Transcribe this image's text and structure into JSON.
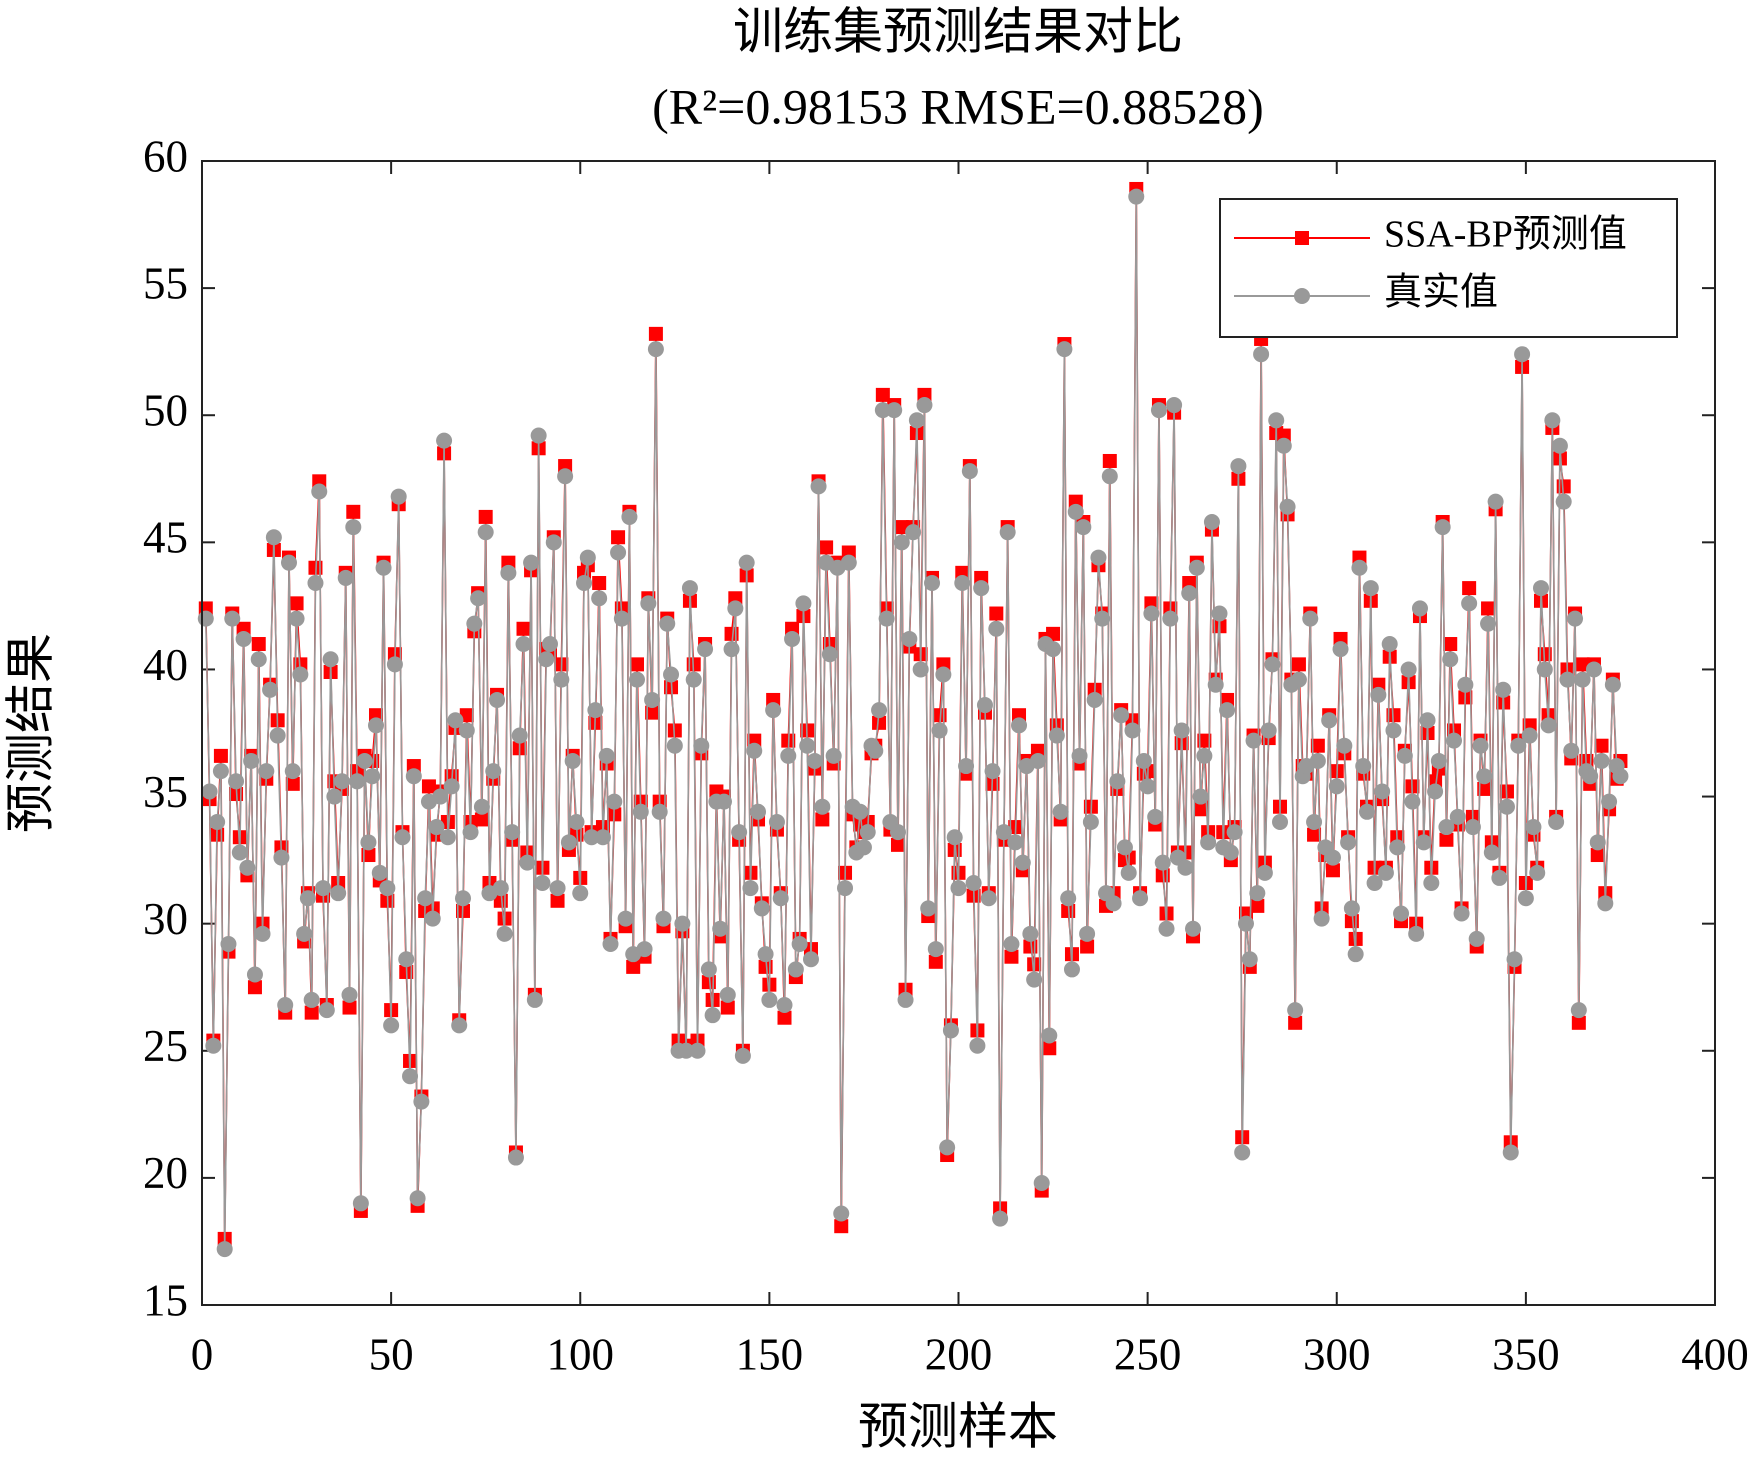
{
  "chart_data": {
    "type": "line",
    "title": "训练集预测结果对比",
    "subtitle": "(R²=0.98153 RMSE=0.88528)",
    "xlabel": "预测样本",
    "ylabel": "预测结果",
    "legend": "upper right",
    "grid": false,
    "xlim": [
      0,
      400
    ],
    "xticks": [
      0,
      50,
      100,
      150,
      200,
      250,
      300,
      350,
      400
    ],
    "ylim": [
      15,
      60
    ],
    "yticks": [
      15,
      20,
      25,
      30,
      35,
      40,
      45,
      50,
      55,
      60
    ],
    "x": [
      1,
      2,
      3,
      4,
      5,
      6,
      7,
      8,
      9,
      10,
      11,
      12,
      13,
      14,
      15,
      16,
      17,
      18,
      19,
      20,
      21,
      22,
      23,
      24,
      25,
      26,
      27,
      28,
      29,
      30,
      31,
      32,
      33,
      34,
      35,
      36,
      37,
      38,
      39,
      40,
      41,
      42,
      43,
      44,
      45,
      46,
      47,
      48,
      49,
      50,
      51,
      52,
      53,
      54,
      55,
      56,
      57,
      58,
      59,
      60,
      61,
      62,
      63,
      64,
      65,
      66,
      67,
      68,
      69,
      70,
      71,
      72,
      73,
      74,
      75,
      76,
      77,
      78,
      79,
      80,
      81,
      82,
      83,
      84,
      85,
      86,
      87,
      88,
      89,
      90,
      91,
      92,
      93,
      94,
      95,
      96,
      97,
      98,
      99,
      100,
      101,
      102,
      103,
      104,
      105,
      106,
      107,
      108,
      109,
      110,
      111,
      112,
      113,
      114,
      115,
      116,
      117,
      118,
      119,
      120,
      121,
      122,
      123,
      124,
      125,
      126,
      127,
      128,
      129,
      130,
      131,
      132,
      133,
      134,
      135,
      136,
      137,
      138,
      139,
      140,
      141,
      142,
      143,
      144,
      145,
      146,
      147,
      148,
      149,
      150,
      151,
      152,
      153,
      154,
      155,
      156,
      157,
      158,
      159,
      160,
      161,
      162,
      163,
      164,
      165,
      166,
      167,
      168,
      169,
      170,
      171,
      172,
      173,
      174,
      175,
      176,
      177,
      178,
      179,
      180,
      181,
      182,
      183,
      184,
      185,
      186,
      187,
      188,
      189,
      190,
      191,
      192,
      193,
      194,
      195,
      196,
      197,
      198,
      199,
      200,
      201,
      202,
      203,
      204,
      205,
      206,
      207,
      208,
      209,
      210,
      211,
      212,
      213,
      214,
      215,
      216,
      217,
      218,
      219,
      220,
      221,
      222,
      223,
      224,
      225,
      226,
      227,
      228,
      229,
      230,
      231,
      232,
      233,
      234,
      235,
      236,
      237,
      238,
      239,
      240,
      241,
      242,
      243,
      244,
      245,
      246,
      247,
      248,
      249,
      250,
      251,
      252,
      253,
      254,
      255,
      256,
      257,
      258,
      259,
      260,
      261,
      262,
      263,
      264,
      265,
      266,
      267,
      268,
      269,
      270,
      271,
      272,
      273,
      274,
      275,
      276,
      277,
      278,
      279,
      280,
      281,
      282,
      283,
      284,
      285,
      286,
      287,
      288,
      289,
      290,
      291,
      292,
      293,
      294,
      295,
      296,
      297,
      298,
      299,
      300,
      301,
      302,
      303,
      304,
      305,
      306,
      307,
      308,
      309,
      310,
      311,
      312,
      313,
      314,
      315,
      316,
      317,
      318,
      319,
      320,
      321,
      322,
      323,
      324,
      325,
      326,
      327,
      328,
      329,
      330,
      331,
      332,
      333,
      334,
      335,
      336,
      337,
      338,
      339,
      340,
      341,
      342,
      343,
      344,
      345,
      346,
      347,
      348,
      349,
      350,
      351,
      352,
      353,
      354,
      355,
      356,
      357,
      358,
      359,
      360,
      361,
      362,
      363,
      364,
      365,
      366,
      367,
      368,
      369,
      370,
      371,
      372,
      373,
      374,
      375
    ],
    "series": [
      {
        "name": "SSA-BP预测值",
        "color": "#ff0000",
        "marker": "square",
        "values": [
          42.4,
          34.9,
          25.4,
          33.5,
          36.6,
          17.6,
          28.9,
          42.2,
          35.1,
          33.4,
          41.6,
          31.9,
          36.6,
          27.5,
          41.0,
          30.0,
          35.7,
          39.4,
          44.7,
          38.0,
          33.0,
          26.5,
          44.4,
          35.5,
          42.6,
          40.2,
          29.3,
          31.2,
          26.5,
          44.0,
          47.4,
          31.1,
          26.8,
          39.9,
          35.6,
          31.6,
          35.3,
          43.8,
          26.7,
          46.2,
          36.0,
          18.7,
          36.6,
          32.7,
          36.4,
          38.2,
          31.7,
          44.2,
          30.9,
          26.6,
          40.6,
          46.5,
          33.6,
          28.1,
          24.6,
          36.2,
          18.9,
          23.2,
          30.5,
          35.4,
          30.6,
          33.5,
          35.2,
          48.5,
          34.0,
          35.8,
          37.7,
          26.2,
          30.5,
          38.2,
          34.0,
          41.5,
          43.0,
          34.1,
          46.0,
          31.6,
          35.7,
          39.0,
          30.9,
          30.2,
          44.2,
          33.3,
          21.0,
          36.9,
          41.6,
          32.8,
          43.9,
          27.2,
          48.7,
          32.2,
          40.8,
          40.7,
          45.2,
          30.9,
          40.2,
          48.0,
          32.9,
          36.6,
          33.5,
          31.8,
          43.8,
          44.1,
          33.6,
          37.9,
          43.4,
          33.8,
          36.3,
          29.4,
          34.3,
          45.2,
          42.4,
          29.9,
          46.2,
          28.3,
          40.2,
          34.8,
          28.7,
          42.8,
          38.3,
          53.2,
          34.8,
          29.9,
          42.0,
          39.3,
          37.6,
          25.4,
          29.7,
          25.2,
          42.7,
          40.2,
          25.4,
          36.7,
          41.0,
          27.7,
          27.0,
          35.2,
          29.5,
          35.0,
          26.7,
          41.4,
          42.8,
          33.3,
          25.0,
          43.7,
          32.0,
          37.2,
          34.1,
          30.8,
          28.3,
          27.6,
          38.8,
          33.7,
          31.2,
          26.3,
          37.2,
          41.6,
          27.9,
          29.4,
          42.1,
          37.6,
          29.0,
          36.1,
          47.4,
          34.1,
          44.8,
          41.0,
          36.3,
          44.2,
          18.1,
          32.0,
          44.6,
          34.3,
          33.0,
          33.9,
          33.6,
          34.0,
          36.7,
          37.0,
          37.9,
          50.8,
          42.4,
          33.7,
          50.4,
          33.1,
          45.6,
          27.4,
          40.9,
          45.6,
          49.3,
          40.6,
          50.8,
          30.3,
          43.6,
          28.5,
          38.2,
          40.2,
          20.9,
          26.0,
          32.9,
          32.0,
          43.8,
          35.9,
          48.0,
          31.1,
          25.8,
          43.6,
          38.3,
          31.2,
          35.5,
          42.2,
          18.8,
          33.3,
          45.6,
          28.7,
          33.8,
          38.2,
          32.1,
          36.4,
          29.1,
          28.4,
          36.8,
          19.5,
          41.2,
          25.1,
          41.4,
          37.8,
          34.1,
          52.8,
          30.5,
          28.8,
          46.6,
          36.3,
          45.8,
          29.1,
          34.6,
          39.2,
          44.1,
          42.2,
          30.7,
          48.2,
          31.2,
          35.3,
          38.4,
          32.5,
          32.6,
          38.0,
          58.9,
          31.2,
          35.9,
          36.0,
          42.6,
          33.9,
          50.4,
          31.9,
          30.4,
          42.4,
          50.1,
          32.8,
          37.1,
          32.8,
          43.4,
          29.5,
          44.2,
          34.5,
          37.2,
          33.6,
          45.5,
          39.6,
          41.7,
          33.6,
          38.8,
          32.5,
          33.8,
          47.5,
          21.6,
          30.4,
          28.3,
          37.4,
          30.7,
          53.0,
          32.4,
          37.3,
          40.4,
          49.3,
          34.6,
          49.2,
          46.1,
          39.6,
          26.1,
          40.2,
          36.2,
          35.9,
          42.2,
          33.5,
          37.0,
          30.6,
          32.7,
          38.2,
          32.1,
          36.0,
          41.2,
          36.7,
          33.4,
          30.1,
          29.4,
          44.4,
          35.9,
          34.6,
          42.7,
          32.2,
          39.4,
          34.9,
          32.2,
          40.5,
          38.2,
          33.4,
          30.1,
          36.8,
          39.5,
          35.4,
          30.0,
          42.1,
          33.4,
          37.5,
          32.2,
          35.6,
          36.1,
          45.8,
          33.3,
          41.0,
          37.6,
          33.9,
          30.6,
          38.9,
          43.2,
          34.2,
          29.1,
          37.2,
          35.3,
          42.4,
          33.2,
          46.3,
          32.0,
          38.7,
          35.2,
          21.4,
          28.3,
          37.2,
          51.9,
          31.6,
          37.8,
          33.5,
          32.2,
          42.7,
          40.6,
          38.2,
          49.5,
          34.2,
          48.3,
          47.2,
          40.0,
          36.5,
          42.2,
          26.1,
          40.2,
          36.4,
          35.5,
          40.2,
          32.7,
          37.0,
          31.2,
          34.5,
          39.6,
          35.7,
          36.4
        ]
      },
      {
        "name": "真实值",
        "color": "#999999",
        "marker": "circle",
        "values": [
          42.0,
          35.2,
          25.2,
          34.0,
          36.0,
          17.2,
          29.2,
          42.0,
          35.6,
          32.8,
          41.2,
          32.2,
          36.4,
          28.0,
          40.4,
          29.6,
          36.0,
          39.2,
          45.2,
          37.4,
          32.6,
          26.8,
          44.2,
          36.0,
          42.0,
          39.8,
          29.6,
          31.0,
          27.0,
          43.4,
          47.0,
          31.4,
          26.6,
          40.4,
          35.0,
          31.2,
          35.6,
          43.6,
          27.2,
          45.6,
          35.6,
          19.0,
          36.4,
          33.2,
          35.8,
          37.8,
          32.0,
          44.0,
          31.4,
          26.0,
          40.2,
          46.8,
          33.4,
          28.6,
          24.0,
          35.8,
          19.2,
          23.0,
          31.0,
          34.8,
          30.2,
          33.8,
          35.0,
          49.0,
          33.4,
          35.4,
          38.0,
          26.0,
          31.0,
          37.6,
          33.6,
          41.8,
          42.8,
          34.6,
          45.4,
          31.2,
          36.0,
          38.8,
          31.4,
          29.6,
          43.8,
          33.6,
          20.8,
          37.4,
          41.0,
          32.4,
          44.2,
          27.0,
          49.2,
          31.6,
          40.4,
          41.0,
          45.0,
          31.4,
          39.6,
          47.6,
          33.2,
          36.4,
          34.0,
          31.2,
          43.4,
          44.4,
          33.4,
          38.4,
          42.8,
          33.4,
          36.6,
          29.2,
          34.8,
          44.6,
          42.0,
          30.2,
          46.0,
          28.8,
          39.6,
          34.4,
          29.0,
          42.6,
          38.8,
          52.6,
          34.4,
          30.2,
          41.8,
          39.8,
          37.0,
          25.0,
          30.0,
          25.0,
          43.2,
          39.6,
          25.0,
          37.0,
          40.8,
          28.2,
          26.4,
          34.8,
          29.8,
          34.8,
          27.2,
          40.8,
          42.4,
          33.6,
          24.8,
          44.2,
          31.4,
          36.8,
          34.4,
          30.6,
          28.8,
          27.0,
          38.4,
          34.0,
          31.0,
          26.8,
          36.6,
          41.2,
          28.2,
          29.2,
          42.6,
          37.0,
          28.6,
          36.4,
          47.2,
          34.6,
          44.2,
          40.6,
          36.6,
          44.0,
          18.6,
          31.4,
          44.2,
          34.6,
          32.8,
          34.4,
          33.0,
          33.6,
          37.0,
          36.8,
          38.4,
          50.2,
          42.0,
          34.0,
          50.2,
          33.6,
          45.0,
          27.0,
          41.2,
          45.4,
          49.8,
          40.0,
          50.4,
          30.6,
          43.4,
          29.0,
          37.6,
          39.8,
          21.2,
          25.8,
          33.4,
          31.4,
          43.4,
          36.2,
          47.8,
          31.6,
          25.2,
          43.2,
          38.6,
          31.0,
          36.0,
          41.6,
          18.4,
          33.6,
          45.4,
          29.2,
          33.2,
          37.8,
          32.4,
          36.2,
          29.6,
          27.8,
          36.4,
          19.8,
          41.0,
          25.6,
          40.8,
          37.4,
          34.4,
          52.6,
          31.0,
          28.2,
          46.2,
          36.6,
          45.6,
          29.6,
          34.0,
          38.8,
          44.4,
          42.0,
          31.2,
          47.6,
          30.8,
          35.6,
          38.2,
          33.0,
          32.0,
          37.6,
          58.6,
          31.0,
          36.4,
          35.4,
          42.2,
          34.2,
          50.2,
          32.4,
          29.8,
          42.0,
          50.4,
          32.6,
          37.6,
          32.2,
          43.0,
          29.8,
          44.0,
          35.0,
          36.6,
          33.2,
          45.8,
          39.4,
          42.2,
          33.0,
          38.4,
          32.8,
          33.6,
          48.0,
          21.0,
          30.0,
          28.6,
          37.2,
          31.2,
          52.4,
          32.0,
          37.6,
          40.2,
          49.8,
          34.0,
          48.8,
          46.4,
          39.4,
          26.6,
          39.6,
          35.8,
          36.2,
          42.0,
          34.0,
          36.4,
          30.2,
          33.0,
          38.0,
          32.6,
          35.4,
          40.8,
          37.0,
          33.2,
          30.6,
          28.8,
          44.0,
          36.2,
          34.4,
          43.2,
          31.6,
          39.0,
          35.2,
          32.0,
          41.0,
          37.6,
          33.0,
          30.4,
          36.6,
          40.0,
          34.8,
          29.6,
          42.4,
          33.2,
          38.0,
          31.6,
          35.2,
          36.4,
          45.6,
          33.8,
          40.4,
          37.2,
          34.2,
          30.4,
          39.4,
          42.6,
          33.8,
          29.4,
          37.0,
          35.8,
          41.8,
          32.8,
          46.6,
          31.8,
          39.2,
          34.6,
          21.0,
          28.6,
          37.0,
          52.4,
          31.0,
          37.4,
          33.8,
          32.0,
          43.2,
          40.0,
          37.8,
          49.8,
          34.0,
          48.8,
          46.6,
          39.6,
          36.8,
          42.0,
          26.6,
          39.6,
          36.0,
          35.8,
          40.0,
          33.2,
          36.4,
          30.8,
          34.8,
          39.4,
          36.2,
          35.8
        ]
      }
    ]
  }
}
